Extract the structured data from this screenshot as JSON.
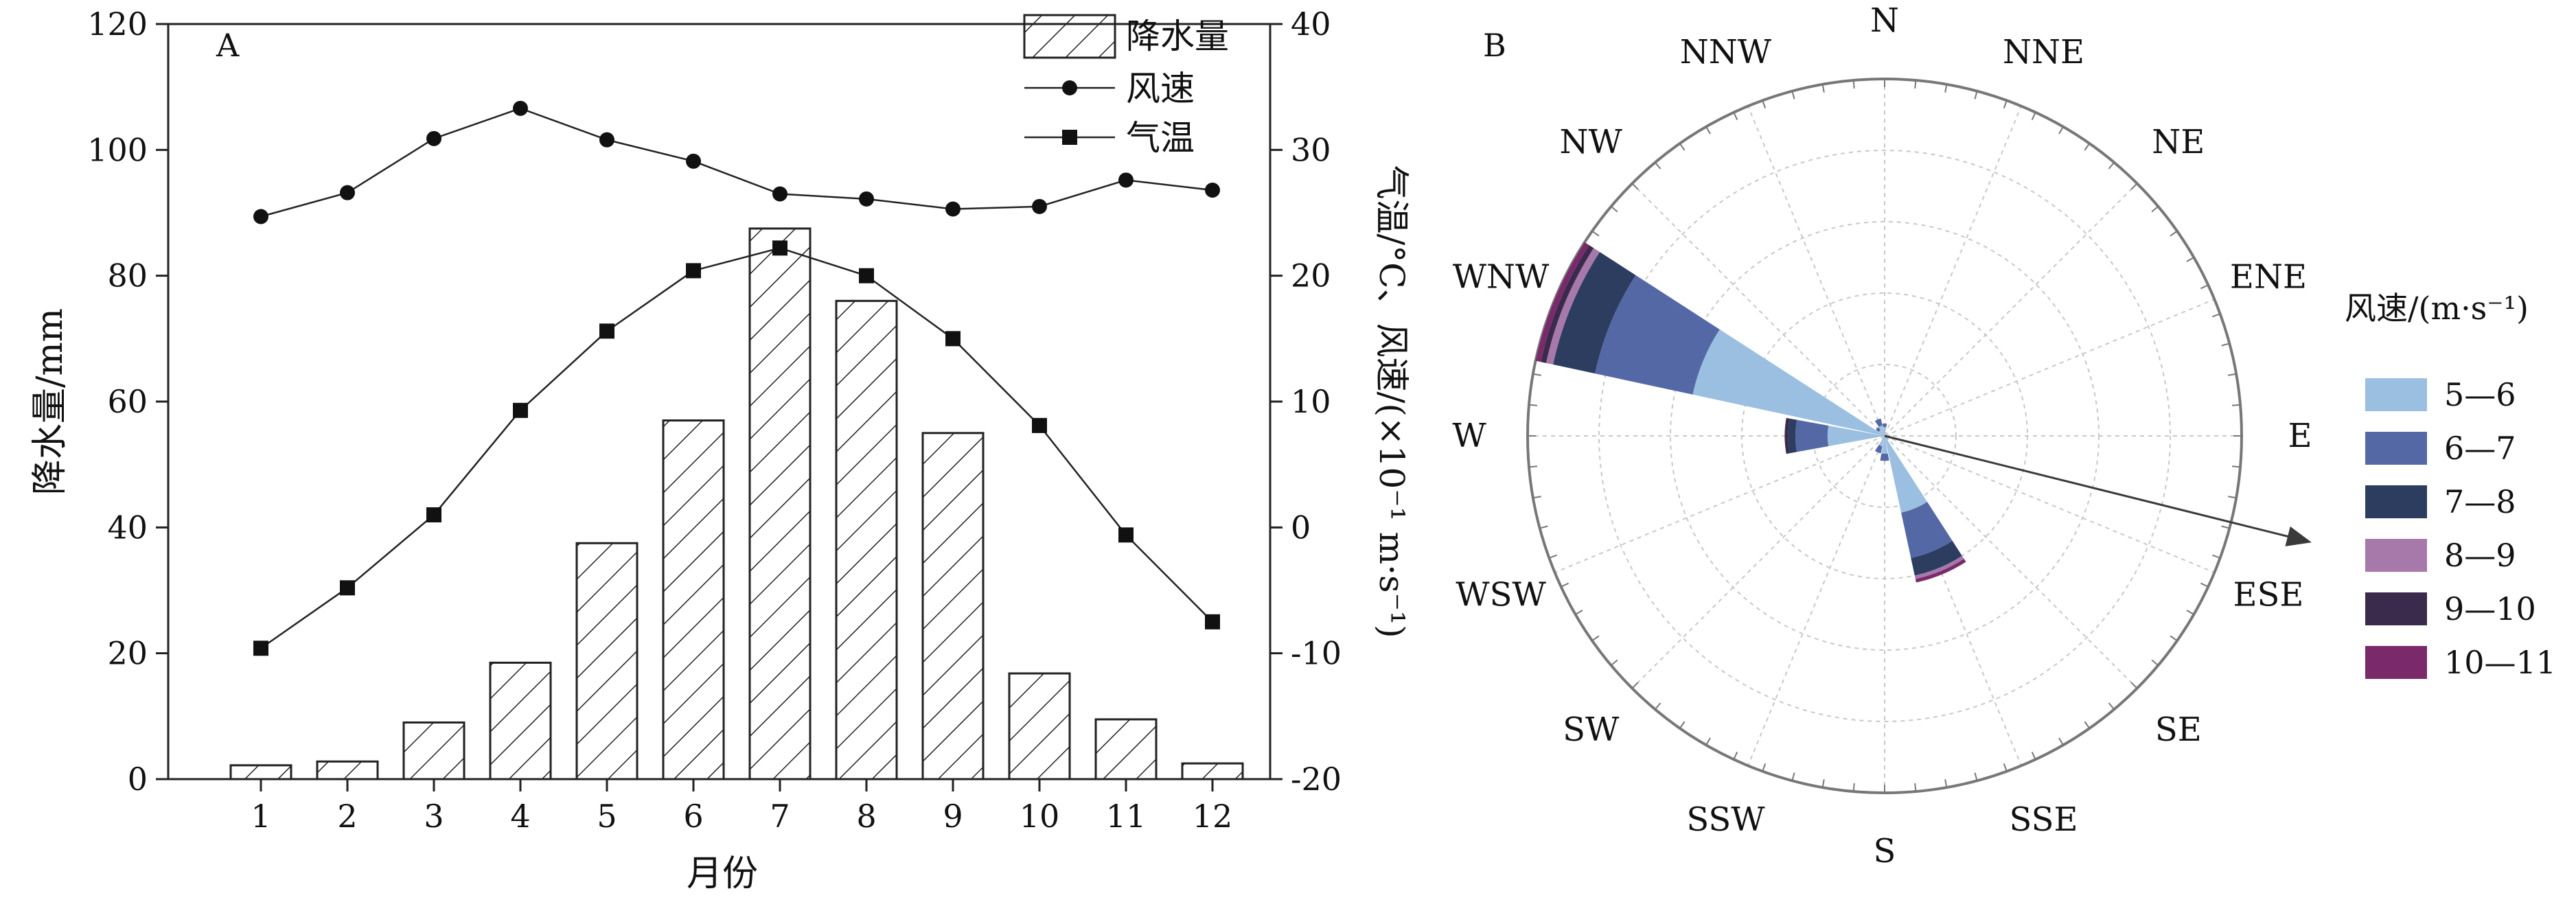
{
  "chart_data": [
    {
      "panel": "A",
      "type": "bar",
      "categories": [
        "1",
        "2",
        "3",
        "4",
        "5",
        "6",
        "7",
        "8",
        "9",
        "10",
        "11",
        "12"
      ],
      "xlabel": "月份",
      "ylabel": "降水量/mm",
      "y2label": "气温/°C、风速/(×10⁻¹ m·s⁻¹)",
      "ylim": [
        0,
        120
      ],
      "y2lim": [
        -20,
        40
      ],
      "yticks": [
        "0",
        "20",
        "40",
        "60",
        "80",
        "100",
        "120"
      ],
      "y2ticks": [
        "-20",
        "-10",
        "0",
        "10",
        "20",
        "30",
        "40"
      ],
      "legend_position": "top-right",
      "series": [
        {
          "name": "降水量",
          "axis": "left",
          "kind": "bar",
          "values": [
            2.2,
            2.8,
            9,
            18.5,
            37.5,
            57,
            87.5,
            76,
            55,
            16.8,
            9.5,
            2.5
          ]
        },
        {
          "name": "风速",
          "axis": "right",
          "kind": "line",
          "marker": "circle",
          "values": [
            24.7,
            26.6,
            30.9,
            33.3,
            30.8,
            29.1,
            26.5,
            26.1,
            25.3,
            25.5,
            27.6,
            26.8
          ]
        },
        {
          "name": "气温",
          "axis": "right",
          "kind": "line",
          "marker": "square",
          "values": [
            -9.6,
            -4.8,
            1.0,
            9.3,
            15.6,
            20.4,
            22.2,
            20.0,
            15.0,
            8.1,
            -0.6,
            -7.5
          ]
        }
      ]
    },
    {
      "panel": "B",
      "type": "windrose",
      "directions": [
        "N",
        "NNE",
        "NE",
        "ENE",
        "E",
        "ESE",
        "SE",
        "SSE",
        "S",
        "SSW",
        "SW",
        "WSW",
        "W",
        "WNW",
        "NW",
        "NNW"
      ],
      "legend_title": "风速/(m·s⁻¹)",
      "legend_items": [
        {
          "label": "5—6",
          "color": "#9bbfe0"
        },
        {
          "label": "6—7",
          "color": "#5568a6"
        },
        {
          "label": "7—8",
          "color": "#2c3d60"
        },
        {
          "label": "8—9",
          "color": "#a778aa"
        },
        {
          "label": "9—10",
          "color": "#3a2a4c"
        },
        {
          "label": "10—11",
          "color": "#7a2a6a"
        }
      ],
      "petals": [
        {
          "direction": "WNW",
          "segments": [
            0.55,
            0.28,
            0.12,
            0.02,
            0.015,
            0.015
          ]
        },
        {
          "direction": "W",
          "segments": [
            0.16,
            0.09,
            0.02,
            0.0,
            0.01,
            0.0
          ]
        },
        {
          "direction": "SSE",
          "segments": [
            0.22,
            0.13,
            0.05,
            0.01,
            0.0,
            0.01
          ]
        },
        {
          "direction": "S",
          "segments": [
            0.05,
            0.02,
            0.0,
            0.0,
            0.0,
            0.0
          ]
        },
        {
          "direction": "N",
          "segments": [
            0.025,
            0.01,
            0.0,
            0.0,
            0.0,
            0.0
          ]
        },
        {
          "direction": "NNW",
          "segments": [
            0.03,
            0.02,
            0.0,
            0.0,
            0.0,
            0.0
          ]
        },
        {
          "direction": "NW",
          "segments": [
            0.02,
            0.01,
            0.0,
            0.0,
            0.0,
            0.0
          ]
        },
        {
          "direction": "SSW",
          "segments": [
            0.03,
            0.02,
            0.0,
            0.0,
            0.0,
            0.0
          ]
        },
        {
          "direction": "E",
          "segments": [
            0.015,
            0.0,
            0.0,
            0.0,
            0.0,
            0.0
          ]
        },
        {
          "direction": "SE",
          "segments": [
            0.015,
            0.0,
            0.0,
            0.0,
            0.0,
            0.0
          ]
        }
      ],
      "arrow_direction_deg": 104
    }
  ]
}
